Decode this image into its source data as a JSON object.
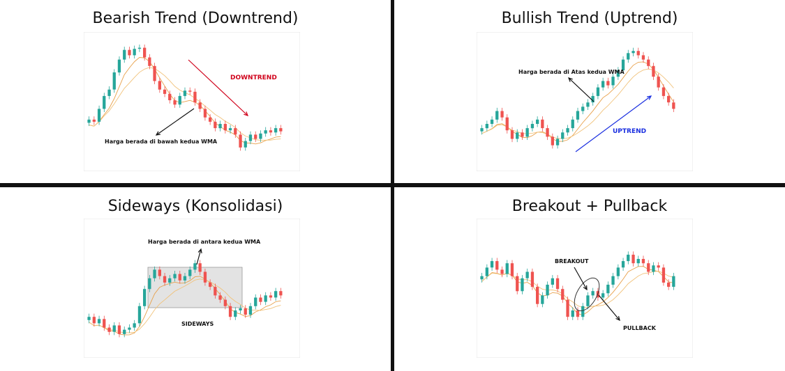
{
  "panels": [
    {
      "id": "p1",
      "title": "Bearish Trend (Downtrend)"
    },
    {
      "id": "p2",
      "title": "Bullish Trend (Uptrend)"
    },
    {
      "id": "p3",
      "title": "Sideways (Konsolidasi)"
    },
    {
      "id": "p4",
      "title": "Breakout  + Pullback"
    }
  ],
  "chart_data": [
    {
      "type": "candlestick",
      "title": "Bearish Trend (Downtrend)",
      "series": [
        {
          "values": [
            0.3,
            0.28,
            0.4,
            0.52,
            0.58,
            0.74,
            0.86,
            0.95,
            0.9,
            0.96,
            0.97,
            0.88,
            0.8,
            0.66,
            0.58,
            0.54,
            0.48,
            0.44,
            0.52,
            0.57,
            0.56,
            0.46,
            0.4,
            0.32,
            0.28,
            0.22,
            0.26,
            0.2,
            0.22,
            0.16,
            0.04,
            0.1,
            0.16,
            0.12,
            0.17,
            0.2,
            0.18,
            0.22,
            0.19
          ]
        }
      ],
      "annotations": [
        "DOWNTREND",
        "Harga berada di bawah kedua WMA"
      ]
    },
    {
      "type": "candlestick",
      "title": "Bullish Trend (Uptrend)",
      "series": [
        {
          "values": [
            0.22,
            0.26,
            0.3,
            0.38,
            0.32,
            0.2,
            0.12,
            0.18,
            0.14,
            0.22,
            0.26,
            0.3,
            0.22,
            0.14,
            0.06,
            0.12,
            0.18,
            0.22,
            0.3,
            0.38,
            0.42,
            0.46,
            0.52,
            0.6,
            0.66,
            0.62,
            0.7,
            0.76,
            0.86,
            0.92,
            0.94,
            0.9,
            0.86,
            0.8,
            0.7,
            0.6,
            0.52,
            0.46,
            0.4
          ]
        }
      ],
      "annotations": [
        "Harga berada di Atas kedua WMA",
        "UPTREND"
      ]
    },
    {
      "type": "candlestick",
      "title": "Sideways (Konsolidasi)",
      "series": [
        {
          "values": [
            0.2,
            0.14,
            0.18,
            0.1,
            0.06,
            0.12,
            0.04,
            0.08,
            0.1,
            0.14,
            0.3,
            0.46,
            0.56,
            0.64,
            0.58,
            0.52,
            0.56,
            0.6,
            0.54,
            0.58,
            0.64,
            0.7,
            0.62,
            0.52,
            0.48,
            0.4,
            0.36,
            0.3,
            0.2,
            0.26,
            0.28,
            0.22,
            0.3,
            0.38,
            0.34,
            0.4,
            0.38,
            0.44,
            0.4
          ]
        }
      ],
      "annotations": [
        "Harga berada di antara kedua WMA",
        "SIDEWAYS"
      ]
    },
    {
      "type": "candlestick",
      "title": "Breakout  + Pullback",
      "series": [
        {
          "values": [
            0.58,
            0.66,
            0.72,
            0.64,
            0.6,
            0.7,
            0.58,
            0.44,
            0.56,
            0.62,
            0.48,
            0.32,
            0.4,
            0.5,
            0.56,
            0.46,
            0.36,
            0.2,
            0.26,
            0.2,
            0.3,
            0.4,
            0.44,
            0.38,
            0.42,
            0.5,
            0.58,
            0.66,
            0.72,
            0.78,
            0.7,
            0.74,
            0.7,
            0.62,
            0.68,
            0.66,
            0.52,
            0.48,
            0.58
          ]
        }
      ],
      "annotations": [
        "BREAKOUT",
        "PULLBACK"
      ]
    }
  ]
}
